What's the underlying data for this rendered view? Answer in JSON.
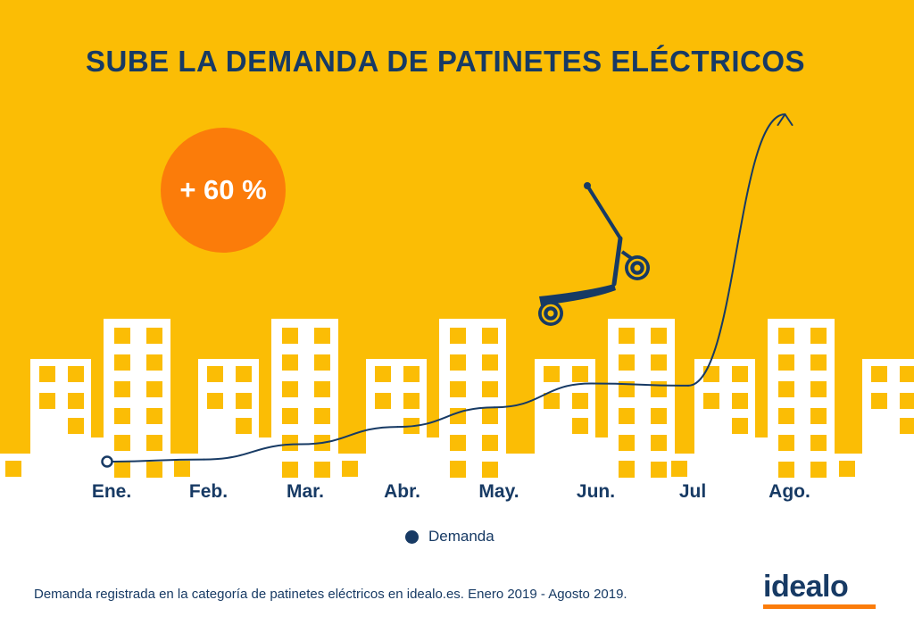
{
  "title": "SUBE LA DEMANDA DE PATINETES ELÉCTRICOS",
  "badge": "+ 60 %",
  "colors": {
    "background": "#FBBD05",
    "accent": "#FB7C0A",
    "line": "#173A64",
    "buildings": "#FFFFFF",
    "windows": "#FBBD05"
  },
  "illustration": {
    "icon": "electric-scooter-icon",
    "skyline": "city-buildings-silhouette"
  },
  "chart_data": {
    "type": "line",
    "categories": [
      "Ene.",
      "Feb.",
      "Mar.",
      "Abr.",
      "May.",
      "Jun.",
      "Jul",
      "Ago."
    ],
    "series": [
      {
        "name": "Demanda",
        "values": [
          0,
          1,
          8,
          16,
          25,
          36,
          35,
          160
        ]
      }
    ],
    "ylabel": "",
    "xlabel": "",
    "ylim": [
      0,
      160
    ],
    "grid": false,
    "legend": "bottom-center"
  },
  "legend_label": "Demanda",
  "footnote": "Demanda registrada en la categoría de patinetes eléctricos en idealo.es. Enero 2019 - Agosto 2019.",
  "logo": "idealo"
}
